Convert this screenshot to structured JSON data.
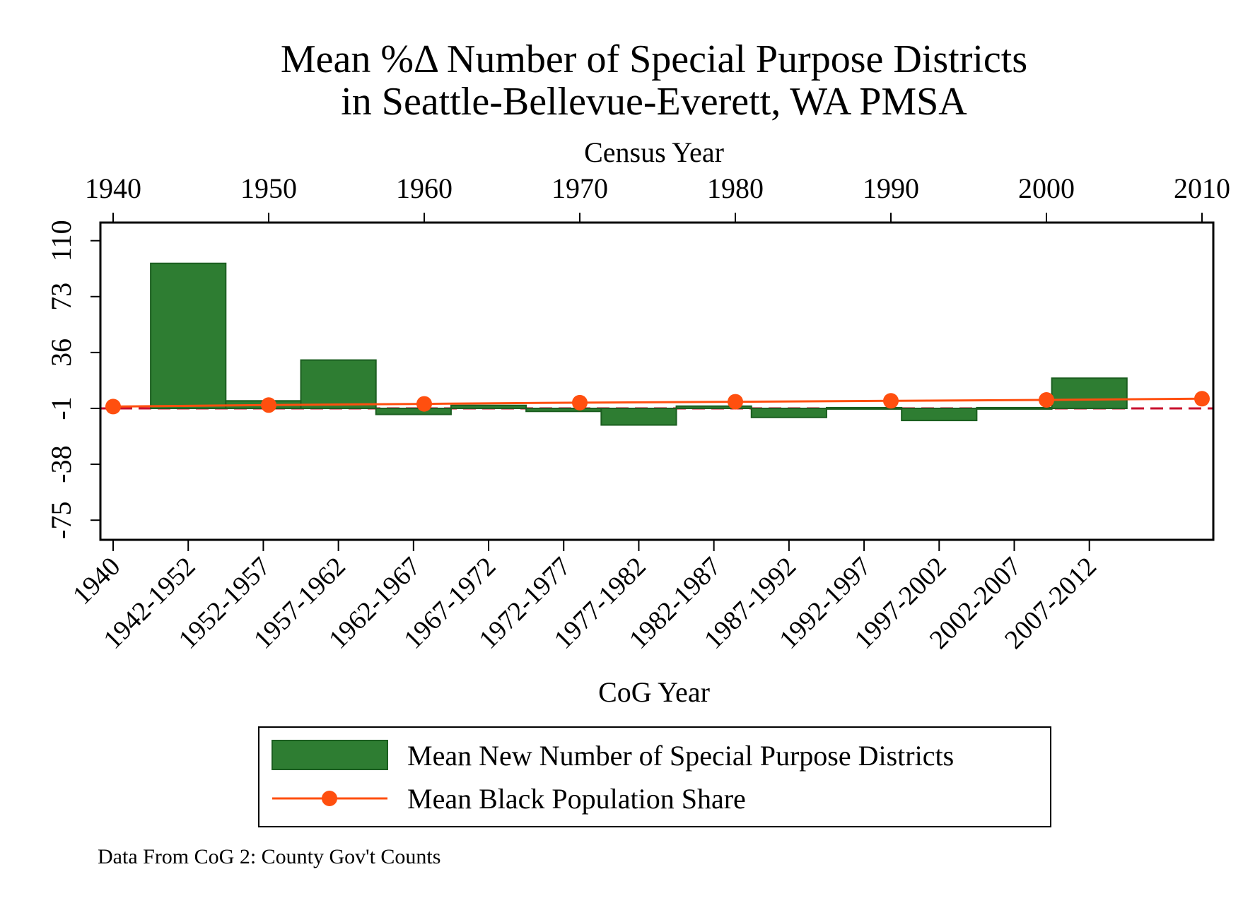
{
  "chart_data": {
    "type": "bar",
    "title": [
      "Mean %Δ Number of Special Purpose Districts",
      "in Seattle-Bellevue-Everett, WA PMSA"
    ],
    "top_axis": {
      "label": "Census Year",
      "ticks": [
        "1940",
        "1950",
        "1960",
        "1970",
        "1980",
        "1990",
        "2000",
        "2010"
      ],
      "range": [
        1940,
        2010
      ]
    },
    "bottom_axis": {
      "label": "CoG Year",
      "ticks": [
        "1940",
        "1942-1952",
        "1952-1957",
        "1957-1962",
        "1962-1967",
        "1967-1972",
        "1972-1977",
        "1977-1982",
        "1982-1987",
        "1987-1992",
        "1992-1997",
        "1997-2002",
        "2002-2007",
        "2007-2012"
      ]
    },
    "y_axis": {
      "ticks": [
        "-75",
        "-38",
        "-1",
        "36",
        "73",
        "110"
      ],
      "tick_values": [
        -75,
        -38,
        -1,
        36,
        73,
        110
      ],
      "range": [
        -88,
        122
      ]
    },
    "reference_line": {
      "y": -1,
      "color": "#c8102e",
      "style": "dashed"
    },
    "series": [
      {
        "name": "Mean New Number of Special Purpose Districts",
        "type": "bar",
        "color": "#2e7d32",
        "bars": [
          {
            "category": "1942-1952",
            "value": 95
          },
          {
            "category": "1952-1957",
            "value": 4
          },
          {
            "category": "1957-1962",
            "value": 31
          },
          {
            "category": "1962-1967",
            "value": -5
          },
          {
            "category": "1967-1972",
            "value": 1
          },
          {
            "category": "1972-1977",
            "value": -3
          },
          {
            "category": "1977-1982",
            "value": -12
          },
          {
            "category": "1982-1987",
            "value": 0.5
          },
          {
            "category": "1987-1992",
            "value": -7
          },
          {
            "category": "1992-1997",
            "value": -0.5
          },
          {
            "category": "1997-2002",
            "value": -9
          },
          {
            "category": "2002-2007",
            "value": -0.5
          },
          {
            "category": "2007-2012",
            "value": 19
          }
        ]
      },
      {
        "name": "Mean Black Population Share",
        "type": "line",
        "color": "#ff4f0f",
        "x": [
          1940,
          1950,
          1960,
          1970,
          1980,
          1990,
          2000,
          2010
        ],
        "values": [
          0.2,
          1.2,
          2.0,
          2.8,
          3.4,
          4.0,
          4.6,
          5.4
        ]
      }
    ],
    "legend": {
      "placement": "bottom",
      "entries": [
        "Mean New Number of Special Purpose Districts",
        "Mean Black Population Share"
      ]
    },
    "note": "Data From CoG 2: County Gov't Counts"
  }
}
